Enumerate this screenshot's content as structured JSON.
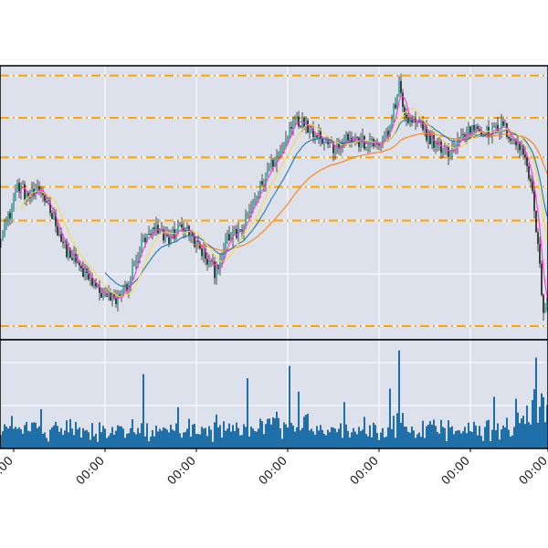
{
  "chart_data": [
    {
      "type": "candlestick",
      "title": "",
      "xlabel": "",
      "ylabel": "",
      "x_tick_labels": [
        "00:00",
        "00:00",
        "00:00",
        "00:00",
        "00:00",
        "00:00",
        "00:00"
      ],
      "ylim": [
        0,
        100
      ],
      "grid": true,
      "background_color": "#dce1ec",
      "colors": {
        "candle_up": "#26a69a",
        "candle_down": "#1a1a1a",
        "ma_short": "#ff33cc",
        "ma_mid": "#ffd84a",
        "ma_long1": "#1f77b4",
        "ma_long2": "#ff7f0e",
        "hlines": "#ffa500"
      },
      "horizontal_lines": [
        96.4,
        81.0,
        66.6,
        55.8,
        43.5,
        5.0
      ],
      "price_path_anchors": [
        {
          "x": 0,
          "y": 38
        },
        {
          "x": 10,
          "y": 45
        },
        {
          "x": 20,
          "y": 57
        },
        {
          "x": 30,
          "y": 52
        },
        {
          "x": 45,
          "y": 54
        },
        {
          "x": 55,
          "y": 48
        },
        {
          "x": 70,
          "y": 34
        },
        {
          "x": 90,
          "y": 25
        },
        {
          "x": 110,
          "y": 17
        },
        {
          "x": 125,
          "y": 14
        },
        {
          "x": 140,
          "y": 20
        },
        {
          "x": 155,
          "y": 35
        },
        {
          "x": 170,
          "y": 40
        },
        {
          "x": 185,
          "y": 37
        },
        {
          "x": 200,
          "y": 42
        },
        {
          "x": 215,
          "y": 35
        },
        {
          "x": 235,
          "y": 25
        },
        {
          "x": 250,
          "y": 37
        },
        {
          "x": 265,
          "y": 40
        },
        {
          "x": 280,
          "y": 52
        },
        {
          "x": 295,
          "y": 63
        },
        {
          "x": 310,
          "y": 70
        },
        {
          "x": 322,
          "y": 82
        },
        {
          "x": 335,
          "y": 78
        },
        {
          "x": 350,
          "y": 75
        },
        {
          "x": 365,
          "y": 70
        },
        {
          "x": 380,
          "y": 74
        },
        {
          "x": 395,
          "y": 72
        },
        {
          "x": 410,
          "y": 71
        },
        {
          "x": 425,
          "y": 75
        },
        {
          "x": 437,
          "y": 92
        },
        {
          "x": 445,
          "y": 80
        },
        {
          "x": 460,
          "y": 78
        },
        {
          "x": 475,
          "y": 72
        },
        {
          "x": 490,
          "y": 68
        },
        {
          "x": 505,
          "y": 74
        },
        {
          "x": 520,
          "y": 78
        },
        {
          "x": 535,
          "y": 75
        },
        {
          "x": 550,
          "y": 78
        },
        {
          "x": 565,
          "y": 72
        },
        {
          "x": 575,
          "y": 67
        },
        {
          "x": 583,
          "y": 55
        },
        {
          "x": 590,
          "y": 30
        },
        {
          "x": 595,
          "y": 10
        },
        {
          "x": 600,
          "y": 14
        }
      ],
      "ma_short_period": 5,
      "ma_mid_period": 12,
      "ma_long1_period": 45,
      "ma_long1_start": 115,
      "ma_long2_period": 120,
      "ma_long2_start": 210
    },
    {
      "type": "bar",
      "title": "",
      "xlabel": "",
      "ylabel": "",
      "ylim": [
        0,
        100
      ],
      "color": "#1f6fa8",
      "grid": true,
      "background_color": "#dce1ec",
      "volume_spikes": [
        {
          "x": 156,
          "value": 72
        },
        {
          "x": 270,
          "value": 68
        },
        {
          "x": 315,
          "value": 80
        },
        {
          "x": 436,
          "value": 95
        },
        {
          "x": 425,
          "value": 58
        },
        {
          "x": 325,
          "value": 55
        },
        {
          "x": 585,
          "value": 88
        },
        {
          "x": 43,
          "value": 38
        },
        {
          "x": 540,
          "value": 50
        },
        {
          "x": 598,
          "value": 42
        },
        {
          "x": 375,
          "value": 45
        },
        {
          "x": 193,
          "value": 40
        }
      ]
    }
  ]
}
